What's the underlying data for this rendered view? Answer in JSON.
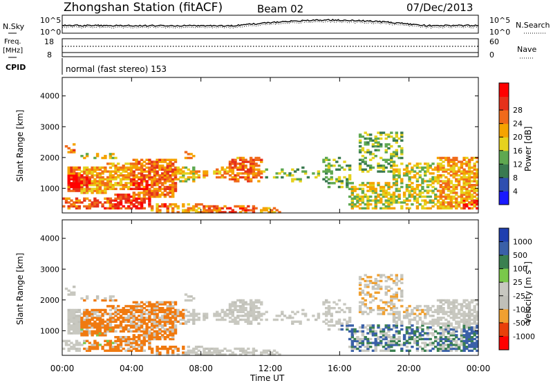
{
  "header": {
    "station": "Zhongshan Station (fitACF)",
    "beam": "Beam 02",
    "date": "07/Dec/2013"
  },
  "noise_panel": {
    "left_label": "N.Sky",
    "right_label": "N.Search",
    "left_ticks": [
      "10^5",
      "10^0"
    ],
    "right_ticks": [
      "10^5",
      "10^0"
    ]
  },
  "freq_panel": {
    "left_label_1": "Freq.",
    "left_label_2": "[MHz]",
    "right_label": "Nave",
    "left_ticks": [
      "18",
      "8"
    ],
    "right_ticks": [
      "60",
      "0"
    ]
  },
  "cpid_panel": {
    "label": "CPID",
    "value": "normal (fast stereo) 153"
  },
  "colors": {
    "power_scale": [
      "#1a1aff",
      "#2f4fb0",
      "#3a7a50",
      "#5fa850",
      "#e6d21e",
      "#f5a300",
      "#f06a1a",
      "#e6311a",
      "#ff0000"
    ],
    "velocity_scale": [
      "#1f3fb0",
      "#3a60a8",
      "#3a8050",
      "#7ac84a",
      "#c8c8c0",
      "#c0c0b8",
      "#f0a030",
      "#f07a10",
      "#e8400a",
      "#ff0000"
    ]
  },
  "chart_data": [
    {
      "type": "heatmap",
      "name": "power",
      "xlabel": "Time UT",
      "ylabel": "Slant Range [km]",
      "ylim": [
        200,
        4600
      ],
      "xlim": [
        0,
        24
      ],
      "yticks": [
        "1000",
        "2000",
        "3000",
        "4000"
      ],
      "xticks": [
        "00:00",
        "04:00",
        "08:00",
        "12:00",
        "16:00",
        "20:00",
        "00:00"
      ],
      "colorbar_label": "Power [dB]",
      "colorbar_ticks": [
        "4",
        "8",
        "12",
        "16",
        "20",
        "24",
        "28"
      ]
    },
    {
      "type": "heatmap",
      "name": "velocity",
      "xlabel": "Time UT",
      "ylabel": "Slant Range [km]",
      "ylim": [
        200,
        4600
      ],
      "xlim": [
        0,
        24
      ],
      "yticks": [
        "1000",
        "2000",
        "3000",
        "4000"
      ],
      "xticks": [
        "00:00",
        "04:00",
        "08:00",
        "12:00",
        "16:00",
        "20:00",
        "00:00"
      ],
      "colorbar_label": "Velocity [m s",
      "colorbar_label_sup": "-1",
      "colorbar_label_end": "]",
      "colorbar_ticks": [
        "1000",
        "500",
        "100",
        "25",
        "-25",
        "-100",
        "-500",
        "-1000"
      ]
    }
  ],
  "xaxis_title": "Time UT"
}
